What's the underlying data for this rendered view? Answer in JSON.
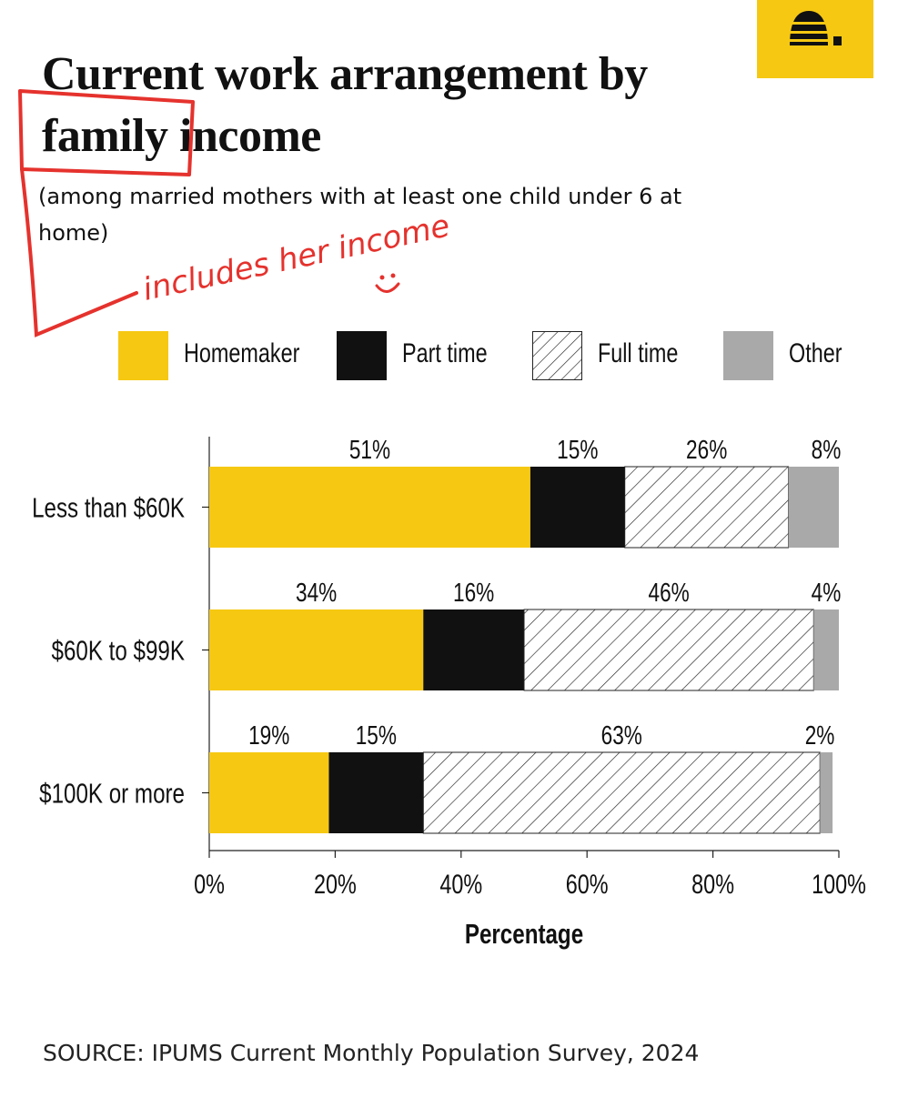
{
  "header": {
    "title": "Current work arrangement by family income",
    "subtitle": "(among married mothers with at least one child under 6 at home)"
  },
  "logo": {
    "icon": "beehive-icon",
    "background": "#f6c812"
  },
  "annotation": {
    "handwritten_note": "includes her income",
    "color": "#e5322d",
    "circled_word": "family"
  },
  "legend": [
    {
      "label": "Homemaker",
      "pattern": "solid",
      "color": "#f6c812"
    },
    {
      "label": "Part time",
      "pattern": "solid",
      "color": "#111111"
    },
    {
      "label": "Full time",
      "pattern": "hatched",
      "color": "#ffffff"
    },
    {
      "label": "Other",
      "pattern": "solid",
      "color": "#a9a9a9"
    }
  ],
  "chart_data": {
    "type": "bar",
    "orientation": "horizontal",
    "stacked": true,
    "categories": [
      "Less than $60K",
      "$60K to $99K",
      "$100K or more"
    ],
    "series": [
      {
        "name": "Homemaker",
        "values": [
          51,
          34,
          19
        ],
        "labels": [
          "51%",
          "34%",
          "19%"
        ],
        "color": "#f6c812"
      },
      {
        "name": "Part time",
        "values": [
          15,
          16,
          15
        ],
        "labels": [
          "15%",
          "16%",
          "15%"
        ],
        "color": "#111111"
      },
      {
        "name": "Full time",
        "values": [
          26,
          46,
          63
        ],
        "labels": [
          "26%",
          "46%",
          "63%"
        ],
        "color": "hatched"
      },
      {
        "name": "Other",
        "values": [
          8,
          4,
          2
        ],
        "labels": [
          "8%",
          "4%",
          "2%"
        ],
        "color": "#a9a9a9"
      }
    ],
    "xlabel": "Percentage",
    "xlim": [
      0,
      100
    ],
    "xticks": [
      "0%",
      "20%",
      "40%",
      "60%",
      "80%",
      "100%"
    ],
    "grid": false,
    "legend_position": "top"
  },
  "footer": {
    "source": "SOURCE: IPUMS Current Monthly Population Survey, 2024"
  }
}
